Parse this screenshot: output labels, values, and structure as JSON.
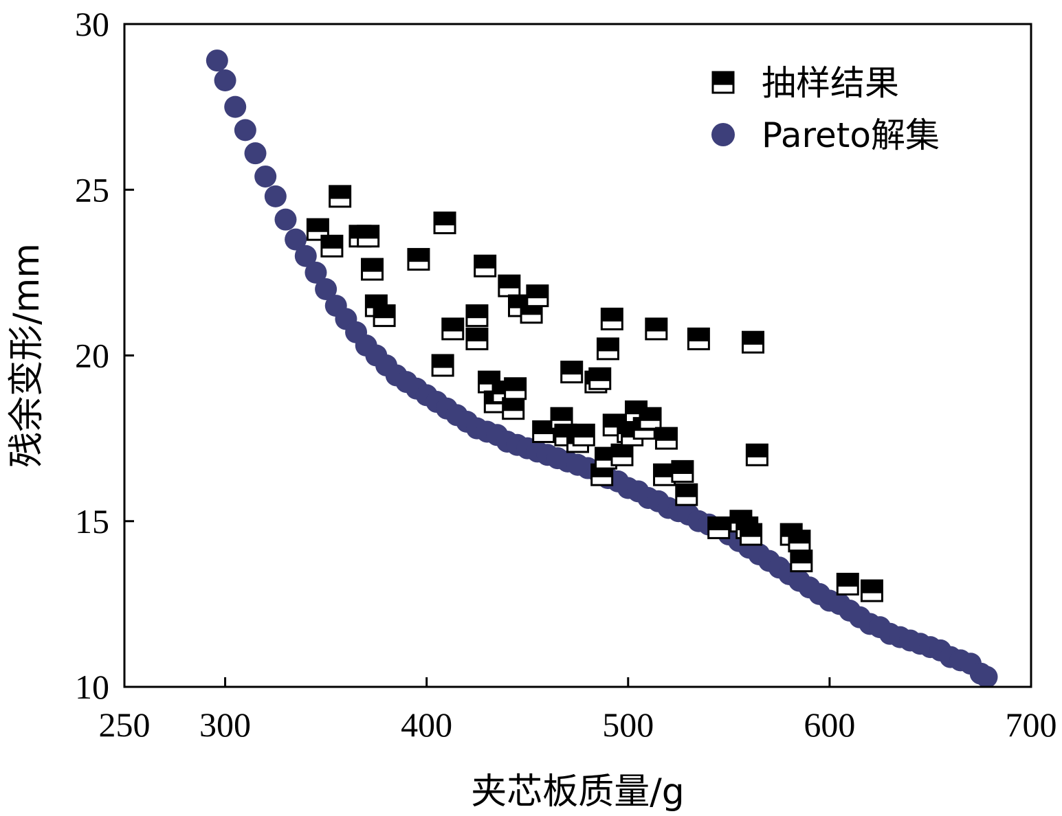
{
  "chart_data": {
    "type": "scatter",
    "xlabel": "夹芯板质量/g",
    "ylabel": "残余变形/mm",
    "xlim": [
      250,
      700
    ],
    "ylim": [
      10,
      30
    ],
    "x_ticks": [
      250,
      300,
      400,
      500,
      600,
      700
    ],
    "y_ticks": [
      10,
      15,
      20,
      25,
      30
    ],
    "grid": false,
    "legend_position": "top-right",
    "series": [
      {
        "name": "抽样结果",
        "marker": "half-filled-square",
        "color": "#000000",
        "points": [
          [
            346,
            23.8
          ],
          [
            353,
            23.3
          ],
          [
            357,
            24.8
          ],
          [
            367,
            23.6
          ],
          [
            371,
            23.6
          ],
          [
            373,
            22.6
          ],
          [
            375,
            21.5
          ],
          [
            379,
            21.2
          ],
          [
            396,
            22.9
          ],
          [
            408,
            19.7
          ],
          [
            409,
            24.0
          ],
          [
            413,
            20.8
          ],
          [
            425,
            21.2
          ],
          [
            425,
            20.5
          ],
          [
            429,
            22.7
          ],
          [
            431,
            19.2
          ],
          [
            434,
            18.6
          ],
          [
            438,
            18.9
          ],
          [
            441,
            22.1
          ],
          [
            443,
            18.4
          ],
          [
            444,
            19.0
          ],
          [
            446,
            21.5
          ],
          [
            452,
            21.3
          ],
          [
            455,
            21.8
          ],
          [
            458,
            17.7
          ],
          [
            467,
            18.1
          ],
          [
            469,
            17.6
          ],
          [
            472,
            19.5
          ],
          [
            475,
            17.4
          ],
          [
            478,
            17.6
          ],
          [
            484,
            19.2
          ],
          [
            486,
            19.3
          ],
          [
            487,
            16.4
          ],
          [
            489,
            16.9
          ],
          [
            490,
            20.2
          ],
          [
            492,
            21.1
          ],
          [
            493,
            17.9
          ],
          [
            497,
            17.0
          ],
          [
            500,
            17.7
          ],
          [
            502,
            17.6
          ],
          [
            504,
            18.3
          ],
          [
            508,
            17.8
          ],
          [
            511,
            18.1
          ],
          [
            514,
            20.8
          ],
          [
            518,
            16.4
          ],
          [
            519,
            17.5
          ],
          [
            527,
            16.5
          ],
          [
            529,
            15.8
          ],
          [
            535,
            20.5
          ],
          [
            545,
            14.8
          ],
          [
            556,
            15.0
          ],
          [
            559,
            14.8
          ],
          [
            561,
            14.6
          ],
          [
            562,
            20.4
          ],
          [
            564,
            17.0
          ],
          [
            581,
            14.6
          ],
          [
            585,
            14.4
          ],
          [
            586,
            13.8
          ],
          [
            609,
            13.1
          ],
          [
            621,
            12.9
          ]
        ]
      },
      {
        "name": "Pareto解集",
        "marker": "circle",
        "color": "#3d3f7a",
        "points": [
          [
            296,
            28.9
          ],
          [
            300,
            28.3
          ],
          [
            305,
            27.5
          ],
          [
            310,
            26.8
          ],
          [
            315,
            26.1
          ],
          [
            320,
            25.4
          ],
          [
            325,
            24.8
          ],
          [
            330,
            24.1
          ],
          [
            335,
            23.5
          ],
          [
            340,
            23.0
          ],
          [
            345,
            22.5
          ],
          [
            350,
            22.0
          ],
          [
            355,
            21.5
          ],
          [
            360,
            21.1
          ],
          [
            365,
            20.7
          ],
          [
            370,
            20.3
          ],
          [
            375,
            20.0
          ],
          [
            380,
            19.7
          ],
          [
            385,
            19.4
          ],
          [
            390,
            19.2
          ],
          [
            395,
            19.0
          ],
          [
            400,
            18.8
          ],
          [
            405,
            18.6
          ],
          [
            410,
            18.4
          ],
          [
            415,
            18.2
          ],
          [
            420,
            18.0
          ],
          [
            425,
            17.8
          ],
          [
            430,
            17.7
          ],
          [
            435,
            17.6
          ],
          [
            440,
            17.4
          ],
          [
            445,
            17.3
          ],
          [
            450,
            17.2
          ],
          [
            455,
            17.1
          ],
          [
            460,
            17.0
          ],
          [
            465,
            16.9
          ],
          [
            470,
            16.8
          ],
          [
            475,
            16.7
          ],
          [
            480,
            16.6
          ],
          [
            485,
            16.5
          ],
          [
            490,
            16.3
          ],
          [
            495,
            16.2
          ],
          [
            500,
            16.0
          ],
          [
            505,
            15.9
          ],
          [
            510,
            15.7
          ],
          [
            515,
            15.6
          ],
          [
            520,
            15.4
          ],
          [
            525,
            15.3
          ],
          [
            530,
            15.2
          ],
          [
            535,
            15.0
          ],
          [
            540,
            14.9
          ],
          [
            545,
            14.8
          ],
          [
            550,
            14.6
          ],
          [
            555,
            14.4
          ],
          [
            560,
            14.2
          ],
          [
            565,
            14.0
          ],
          [
            570,
            13.8
          ],
          [
            575,
            13.6
          ],
          [
            580,
            13.4
          ],
          [
            585,
            13.2
          ],
          [
            590,
            13.0
          ],
          [
            595,
            12.8
          ],
          [
            600,
            12.6
          ],
          [
            605,
            12.5
          ],
          [
            610,
            12.3
          ],
          [
            615,
            12.1
          ],
          [
            620,
            11.9
          ],
          [
            625,
            11.8
          ],
          [
            630,
            11.6
          ],
          [
            635,
            11.5
          ],
          [
            640,
            11.4
          ],
          [
            645,
            11.3
          ],
          [
            650,
            11.2
          ],
          [
            655,
            11.1
          ],
          [
            660,
            10.9
          ],
          [
            665,
            10.8
          ],
          [
            670,
            10.7
          ],
          [
            675,
            10.4
          ],
          [
            678,
            10.3
          ]
        ]
      }
    ]
  }
}
